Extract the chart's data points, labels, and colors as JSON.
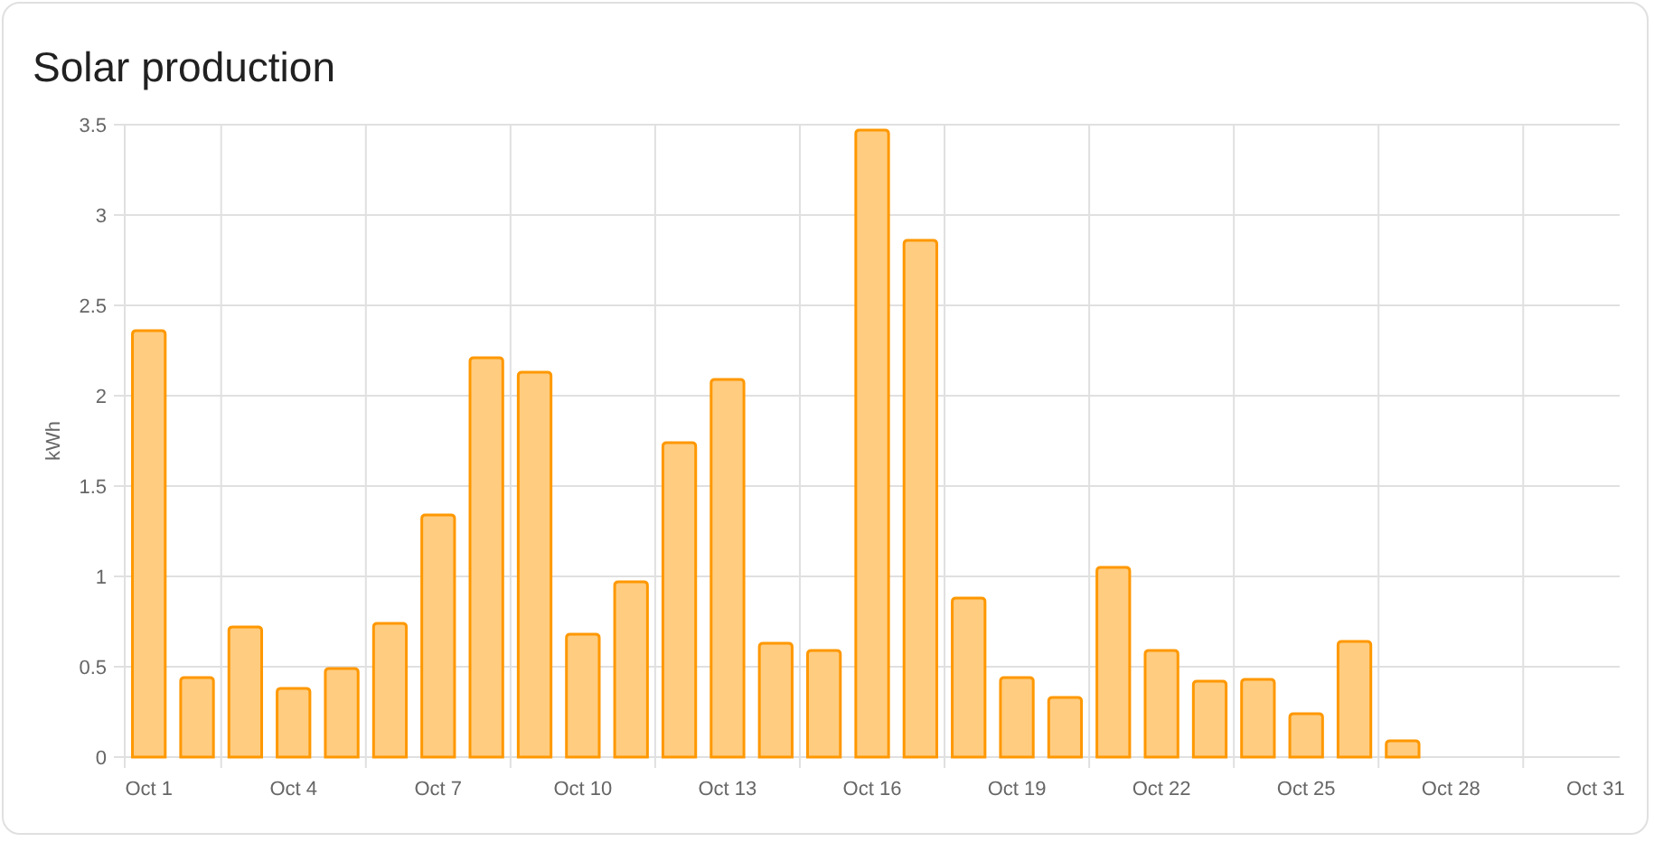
{
  "chart_data": {
    "type": "bar",
    "title": "Solar production",
    "ylabel": "kWh",
    "categories": [
      "Oct 1",
      null,
      null,
      "Oct 4",
      null,
      null,
      "Oct 7",
      null,
      null,
      "Oct 10",
      null,
      null,
      "Oct 13",
      null,
      null,
      "Oct 16",
      null,
      null,
      "Oct 19",
      null,
      null,
      "Oct 22",
      null,
      null,
      "Oct 25",
      null,
      null,
      "Oct 28",
      null,
      null,
      "Oct 31"
    ],
    "values": [
      2.36,
      0.44,
      0.72,
      0.38,
      0.49,
      0.74,
      1.34,
      2.21,
      2.13,
      0.68,
      0.97,
      1.74,
      2.09,
      0.63,
      0.59,
      3.47,
      2.86,
      0.88,
      0.44,
      0.33,
      1.05,
      0.59,
      0.42,
      0.43,
      0.24,
      0.64,
      0.09,
      null,
      null,
      null,
      null
    ],
    "color": "#ff9800",
    "ylim": [
      0,
      3.5
    ],
    "yticks": [
      0,
      0.5,
      1,
      1.5,
      2,
      2.5,
      3,
      3.5
    ],
    "grid": true
  }
}
